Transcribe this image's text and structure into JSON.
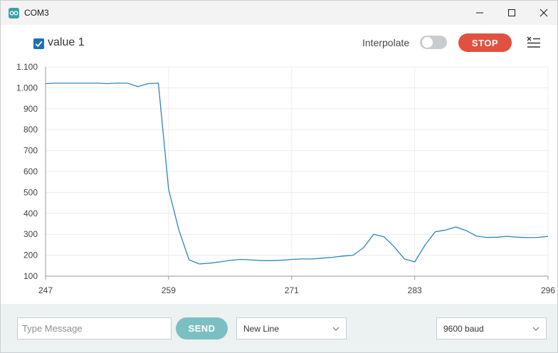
{
  "window": {
    "title": "COM3"
  },
  "toolbar": {
    "series_label": "value 1",
    "series_checked": true,
    "interpolate_label": "Interpolate",
    "interpolate_on": false,
    "stop_label": "STOP"
  },
  "footer": {
    "message_placeholder": "Type Message",
    "send_label": "SEND",
    "line_ending": "New Line",
    "baud_rate": "9600 baud"
  },
  "colors": {
    "line": "#2f86b8",
    "stop": "#e0523f",
    "send": "#7cbfc3",
    "accent": "#1f6fb8"
  },
  "chart_data": {
    "type": "line",
    "series": [
      {
        "name": "value 1",
        "x": [
          247,
          248,
          249,
          250,
          251,
          252,
          253,
          254,
          255,
          256,
          257,
          258,
          259,
          260,
          261,
          262,
          263,
          264,
          265,
          266,
          267,
          268,
          269,
          270,
          271,
          272,
          273,
          274,
          275,
          276,
          277,
          278,
          279,
          280,
          281,
          282,
          283,
          284,
          285,
          286,
          287,
          288,
          289,
          290,
          291,
          292,
          293,
          294,
          295,
          296
        ],
        "values": [
          1020,
          1022,
          1022,
          1022,
          1022,
          1022,
          1020,
          1022,
          1022,
          1006,
          1020,
          1022,
          515,
          320,
          178,
          158,
          162,
          168,
          175,
          180,
          178,
          174,
          174,
          176,
          180,
          182,
          182,
          186,
          190,
          196,
          200,
          236,
          300,
          288,
          240,
          182,
          168,
          248,
          312,
          320,
          335,
          318,
          292,
          285,
          286,
          290,
          286,
          284,
          285,
          290
        ]
      }
    ],
    "x_ticks": [
      247,
      259,
      271,
      283,
      296
    ],
    "y_ticks": [
      100,
      200,
      300,
      400,
      500,
      600,
      700,
      800,
      900,
      1000,
      1100
    ],
    "y_tick_labels": [
      "100",
      "200",
      "300",
      "400",
      "500",
      "600",
      "700",
      "800",
      "900",
      "1.000",
      "1.100"
    ],
    "xlim": [
      247,
      296
    ],
    "ylim": [
      100,
      1100
    ],
    "grid": true
  }
}
